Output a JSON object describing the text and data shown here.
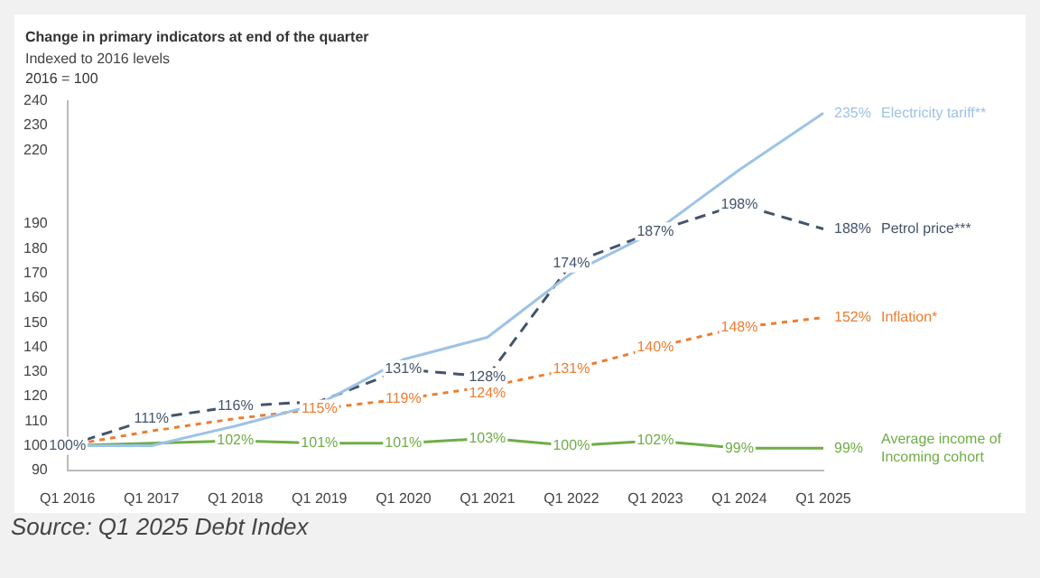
{
  "chart_data": {
    "type": "line",
    "title": "Change in primary indicators at end of the quarter",
    "subtitle": "Indexed to 2016 levels",
    "annotations": [
      "2016 = 100",
      "Source: Q1 2025 Debt Index"
    ],
    "categories": [
      "Q1 2016",
      "Q1 2017",
      "Q1 2018",
      "Q1 2019",
      "Q1 2020",
      "Q1 2021",
      "Q1 2022",
      "Q1 2023",
      "Q1 2024",
      "Q1 2025"
    ],
    "ylim": [
      90,
      240
    ],
    "yticks": [
      90,
      100,
      110,
      120,
      130,
      140,
      150,
      160,
      170,
      180,
      190,
      220,
      230,
      240
    ],
    "grid": false,
    "legend": false,
    "series": [
      {
        "name": "Electricity tariff**",
        "color": "#9dc3e6",
        "line_style": "solid",
        "values": [
          100,
          100,
          108,
          117,
          135,
          144,
          170,
          187,
          212,
          235
        ],
        "value_labels": [
          null,
          null,
          null,
          null,
          null,
          null,
          null,
          null,
          null,
          "235%"
        ]
      },
      {
        "name": "Petrol price***",
        "color": "#44546a",
        "line_style": "dashed",
        "values": [
          100,
          111,
          116,
          118,
          131,
          128,
          174,
          187,
          198,
          188
        ],
        "value_labels": [
          "100%",
          "111%",
          "116%",
          null,
          "131%",
          "128%",
          "174%",
          "187%",
          "198%",
          "188%"
        ]
      },
      {
        "name": "Inflation*",
        "color": "#ed7d31",
        "line_style": "dotted",
        "values": [
          100,
          106,
          111,
          115,
          119,
          124,
          131,
          140,
          148,
          152
        ],
        "value_labels": [
          null,
          null,
          null,
          "115%",
          "119%",
          "124%",
          "131%",
          "140%",
          "148%",
          "152%"
        ]
      },
      {
        "name": "Average income of Incoming cohort",
        "color": "#70ad47",
        "line_style": "solid",
        "values": [
          100,
          101,
          102,
          101,
          101,
          103,
          100,
          102,
          99,
          99
        ],
        "value_labels": [
          null,
          null,
          "102%",
          "101%",
          "101%",
          "103%",
          "100%",
          "102%",
          "99%",
          "99%"
        ]
      }
    ]
  }
}
